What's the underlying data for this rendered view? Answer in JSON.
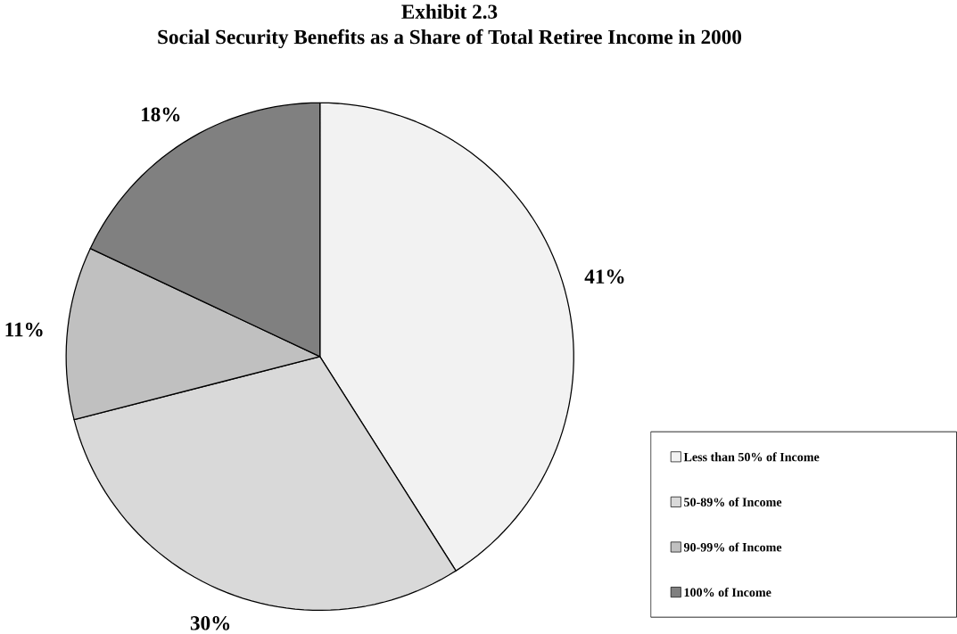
{
  "chart_data": {
    "type": "pie",
    "title": "Exhibit 2.3",
    "subtitle": "Social Security Benefits as a Share of Total Retiree Income in 2000",
    "categories": [
      "Less than 50% of Income",
      "50-89% of Income",
      "90-99% of Income",
      "100% of Income"
    ],
    "values": [
      41,
      30,
      11,
      18
    ],
    "value_labels": [
      "41%",
      "30%",
      "11%",
      "18%"
    ],
    "colors": [
      "#f2f2f2",
      "#d9d9d9",
      "#c0c0c0",
      "#808080"
    ],
    "legend": "right"
  }
}
